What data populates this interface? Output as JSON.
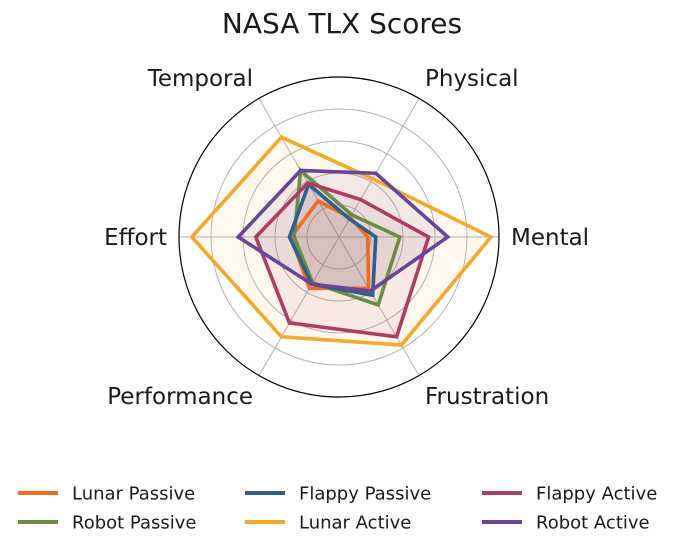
{
  "chart_data": {
    "type": "radar",
    "title": "NASA TLX Scores",
    "axes": [
      "Mental",
      "Physical",
      "Temporal",
      "Effort",
      "Performance",
      "Frustration"
    ],
    "rlim": [
      0,
      100
    ],
    "grid": true,
    "legend_position": "bottom",
    "series": [
      {
        "name": "Lunar Passive",
        "color": "#f26b21",
        "values": [
          18,
          14,
          26,
          30,
          37,
          37
        ]
      },
      {
        "name": "Robot Passive",
        "color": "#6a8c45",
        "values": [
          38,
          16,
          48,
          28,
          33,
          49
        ]
      },
      {
        "name": "Flappy Passive",
        "color": "#2f5f8a",
        "values": [
          23,
          13,
          38,
          31,
          34,
          42
        ]
      },
      {
        "name": "Lunar Active",
        "color": "#f6a82b",
        "values": [
          95,
          42,
          72,
          92,
          72,
          78
        ]
      },
      {
        "name": "Flappy Active",
        "color": "#b03b63",
        "values": [
          56,
          27,
          39,
          52,
          62,
          72
        ]
      },
      {
        "name": "Robot Active",
        "color": "#6a4597",
        "values": [
          68,
          46,
          48,
          63,
          34,
          39
        ]
      }
    ]
  }
}
